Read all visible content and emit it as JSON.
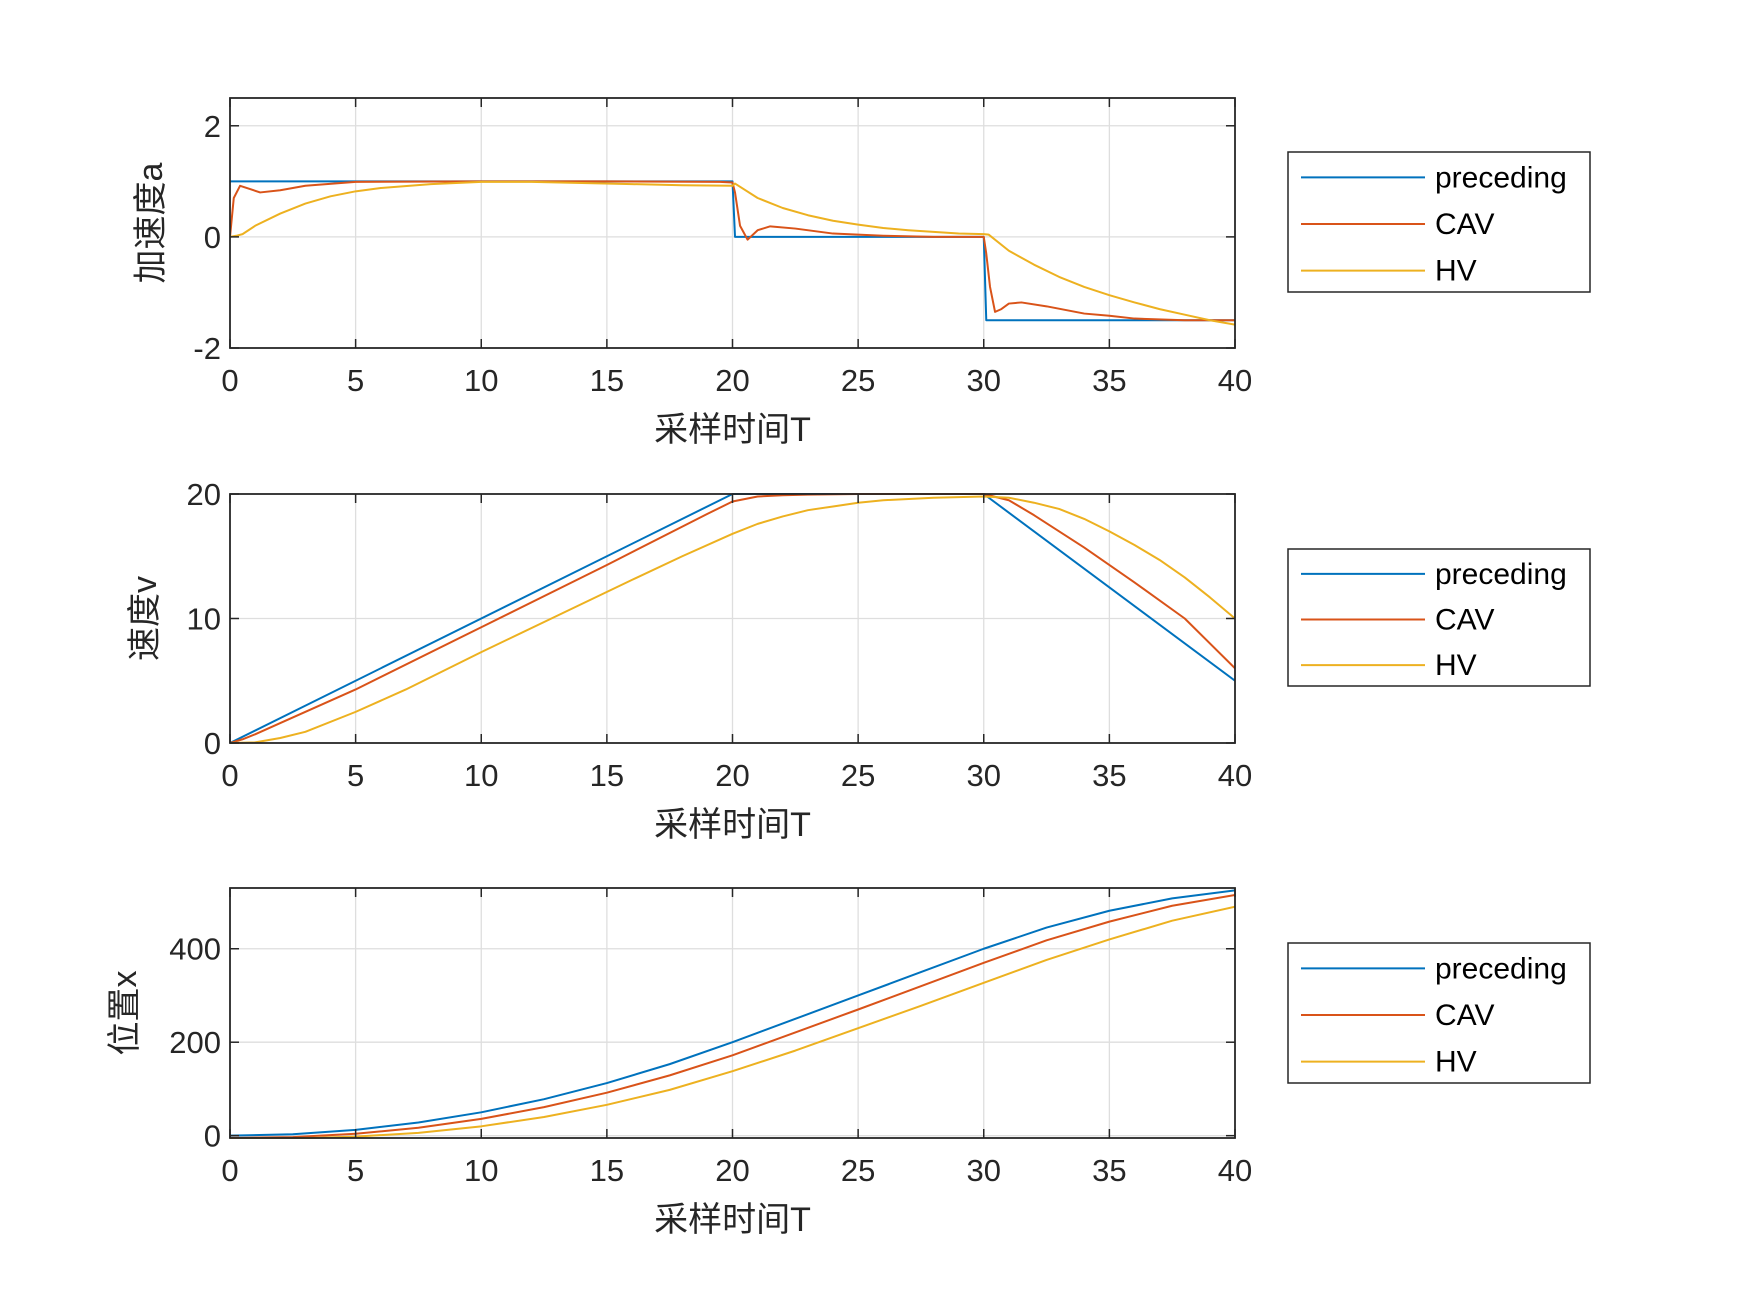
{
  "figure": {
    "background": "#ffffff"
  },
  "legend": {
    "entries": [
      "preceding",
      "CAV",
      "HV"
    ]
  },
  "colors": {
    "preceding": "#0072BD",
    "CAV": "#D95319",
    "HV": "#EDB120",
    "grid": "#dedede",
    "axes": "#262626"
  },
  "chart_data": [
    {
      "type": "line",
      "title": "",
      "xlabel": "采样时间T",
      "ylabel": "加速度a",
      "xlim": [
        0,
        40
      ],
      "ylim": [
        -2,
        2.5
      ],
      "xticks": [
        0,
        5,
        10,
        15,
        20,
        25,
        30,
        35,
        40
      ],
      "yticks": [
        -2,
        0,
        2
      ],
      "grid": true,
      "legend_position": "outside-right",
      "series": [
        {
          "name": "preceding",
          "x": [
            0,
            20,
            20.1,
            30,
            30.1,
            40
          ],
          "y": [
            1,
            1,
            0,
            0,
            -1.5,
            -1.5
          ]
        },
        {
          "name": "CAV",
          "x": [
            0,
            0.15,
            0.4,
            0.8,
            1.2,
            2,
            3,
            5,
            10,
            15,
            19.5,
            20,
            20.1,
            20.3,
            20.6,
            21,
            21.5,
            22.5,
            24,
            26,
            28,
            30,
            30.1,
            30.25,
            30.45,
            30.7,
            31,
            31.5,
            32.5,
            34,
            35,
            36,
            38,
            40
          ],
          "y": [
            0,
            0.7,
            0.92,
            0.86,
            0.8,
            0.84,
            0.92,
            0.99,
            1,
            1,
            0.99,
            0.98,
            0.8,
            0.2,
            -0.05,
            0.12,
            0.19,
            0.15,
            0.06,
            0.02,
            0.0,
            0.0,
            -0.3,
            -0.9,
            -1.35,
            -1.3,
            -1.2,
            -1.18,
            -1.25,
            -1.38,
            -1.42,
            -1.47,
            -1.5,
            -1.5
          ]
        },
        {
          "name": "HV",
          "x": [
            0,
            0.25,
            0.5,
            1,
            2,
            3,
            4,
            5,
            6,
            8,
            10,
            12,
            14,
            16,
            18,
            20,
            20.1,
            21,
            22,
            23,
            24,
            25,
            26,
            27,
            28,
            29,
            30,
            30.2,
            31,
            32,
            33,
            34,
            35,
            36,
            37,
            38,
            39,
            40
          ],
          "y": [
            0,
            0.02,
            0.05,
            0.2,
            0.42,
            0.6,
            0.73,
            0.82,
            0.88,
            0.95,
            0.99,
            0.99,
            0.97,
            0.95,
            0.93,
            0.92,
            0.96,
            0.7,
            0.52,
            0.39,
            0.29,
            0.22,
            0.16,
            0.12,
            0.09,
            0.06,
            0.05,
            0.04,
            -0.25,
            -0.5,
            -0.72,
            -0.9,
            -1.05,
            -1.18,
            -1.3,
            -1.4,
            -1.5,
            -1.58
          ]
        }
      ]
    },
    {
      "type": "line",
      "title": "",
      "xlabel": "采样时间T",
      "ylabel": "速度v",
      "xlim": [
        0,
        40
      ],
      "ylim": [
        0,
        20
      ],
      "xticks": [
        0,
        5,
        10,
        15,
        20,
        25,
        30,
        35,
        40
      ],
      "yticks": [
        0,
        10,
        20
      ],
      "grid": true,
      "legend_position": "outside-right",
      "series": [
        {
          "name": "preceding",
          "x": [
            0,
            20,
            30,
            40
          ],
          "y": [
            0,
            20,
            20,
            5
          ]
        },
        {
          "name": "CAV",
          "x": [
            0,
            0.5,
            1,
            2,
            5,
            10,
            15,
            19,
            20,
            21,
            22,
            23,
            25,
            27,
            30,
            31,
            32,
            34,
            36,
            38,
            40
          ],
          "y": [
            0,
            0.3,
            0.7,
            1.6,
            4.3,
            9.3,
            14.3,
            18.4,
            19.4,
            19.8,
            19.9,
            19.95,
            20,
            20,
            20,
            19.5,
            18.3,
            15.7,
            12.9,
            10.0,
            6.0
          ]
        },
        {
          "name": "HV",
          "x": [
            0,
            1,
            2,
            3,
            5,
            7,
            10,
            13,
            16,
            18,
            20,
            21,
            22,
            23,
            24,
            25,
            26,
            28,
            30,
            31,
            32,
            33,
            34,
            35,
            36,
            37,
            38,
            39,
            40
          ],
          "y": [
            0,
            0.05,
            0.4,
            0.9,
            2.5,
            4.3,
            7.3,
            10.2,
            13.1,
            15.0,
            16.8,
            17.6,
            18.2,
            18.7,
            19.0,
            19.3,
            19.5,
            19.7,
            19.8,
            19.7,
            19.3,
            18.8,
            18.0,
            17.0,
            15.9,
            14.7,
            13.3,
            11.7,
            10.0
          ]
        }
      ]
    },
    {
      "type": "line",
      "title": "",
      "xlabel": "采样时间T",
      "ylabel": "位置x",
      "xlim": [
        0,
        40
      ],
      "ylim": [
        -5,
        530
      ],
      "xticks": [
        0,
        5,
        10,
        15,
        20,
        25,
        30,
        35,
        40
      ],
      "yticks": [
        0,
        200,
        400
      ],
      "grid": true,
      "legend_position": "outside-right",
      "series": [
        {
          "name": "preceding",
          "x": [
            0,
            2.5,
            5,
            7.5,
            10,
            12.5,
            15,
            17.5,
            20,
            22.5,
            25,
            27.5,
            30,
            32.5,
            35,
            37.5,
            40
          ],
          "y": [
            0,
            3.1,
            12.5,
            28.1,
            50,
            78.1,
            112.5,
            153.1,
            200,
            250,
            300,
            350,
            400,
            445.3,
            481.3,
            507.8,
            525
          ]
        },
        {
          "name": "CAV",
          "x": [
            0,
            2.5,
            5,
            7.5,
            10,
            12.5,
            15,
            17.5,
            20,
            22.5,
            25,
            27.5,
            30,
            32.5,
            35,
            37.5,
            40
          ],
          "y": [
            -5,
            -3,
            4,
            17,
            36,
            61,
            92,
            129,
            172,
            221,
            270,
            320,
            370,
            418,
            458,
            492,
            515
          ]
        },
        {
          "name": "HV",
          "x": [
            0,
            2.5,
            5,
            7.5,
            10,
            12.5,
            15,
            17.5,
            20,
            22.5,
            25,
            27.5,
            30,
            32.5,
            35,
            37.5,
            40
          ],
          "y": [
            -7,
            -6,
            -2,
            6,
            20,
            40,
            66,
            98,
            138,
            182,
            230,
            278,
            327,
            376,
            420,
            460,
            490
          ]
        }
      ]
    }
  ]
}
